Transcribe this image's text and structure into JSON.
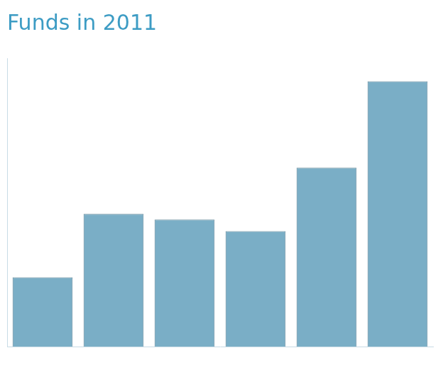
{
  "chart_data": {
    "type": "bar",
    "title": "Funds in 2011",
    "categories": [
      null,
      null,
      null,
      null,
      null,
      null
    ],
    "values": [
      1.2,
      2.3,
      2.2,
      2.0,
      3.1,
      4.6
    ],
    "color": "#7aaec6",
    "ylim": [
      0,
      5
    ],
    "grid": false,
    "tick_labels": false
  }
}
